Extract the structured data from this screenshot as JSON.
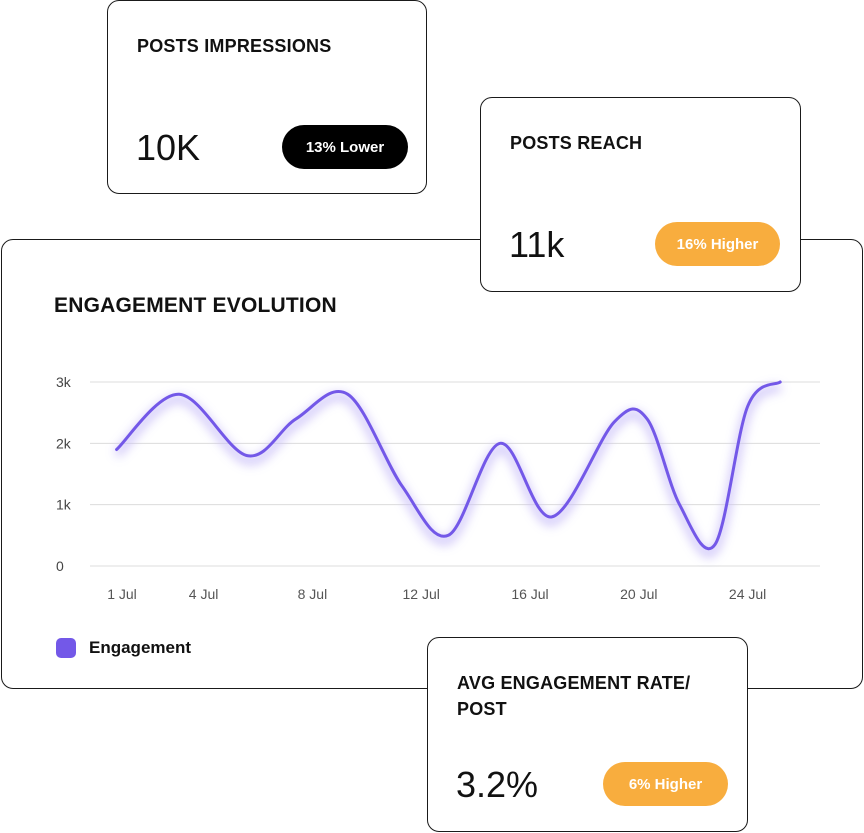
{
  "cards": {
    "impressions": {
      "title": "POSTS IMPRESSIONS",
      "value": "10K",
      "badge": "13% Lower"
    },
    "reach": {
      "title": "POSTS REACH",
      "value": "11k",
      "badge": "16% Higher"
    },
    "avg_engagement": {
      "title_line1": "AVG ENGAGEMENT RATE/",
      "title_line2": "POST",
      "value": "3.2%",
      "badge": "6% Higher"
    }
  },
  "colors": {
    "line": "#7358e8",
    "badge_dark": "#000000",
    "badge_orange": "#f8ad3e"
  },
  "chart_data": {
    "type": "line",
    "title": "ENGAGEMENT EVOLUTION",
    "y_ticks": [
      "3k",
      "2k",
      "1k",
      "0"
    ],
    "y_tick_values": [
      3000,
      2000,
      1000,
      0
    ],
    "ylim": [
      0,
      3000
    ],
    "x_ticks": [
      "1 Jul",
      "4 Jul",
      "8 Jul",
      "12 Jul",
      "16 Jul",
      "20 Jul",
      "24 Jul"
    ],
    "x_tick_days": [
      1,
      4,
      8,
      12,
      16,
      20,
      24
    ],
    "grid": true,
    "legend_position": "bottom-left",
    "series": [
      {
        "name": "Engagement",
        "x": [
          0.8,
          3.1,
          5.6,
          7.4,
          9.3,
          11.3,
          13.0,
          14.9,
          16.8,
          19.1,
          20.3,
          21.5,
          22.8,
          24.0,
          25.2
        ],
        "values": [
          1900,
          2800,
          1800,
          2400,
          2800,
          1300,
          500,
          2000,
          800,
          2350,
          2400,
          1000,
          350,
          2600,
          3000
        ]
      }
    ]
  }
}
